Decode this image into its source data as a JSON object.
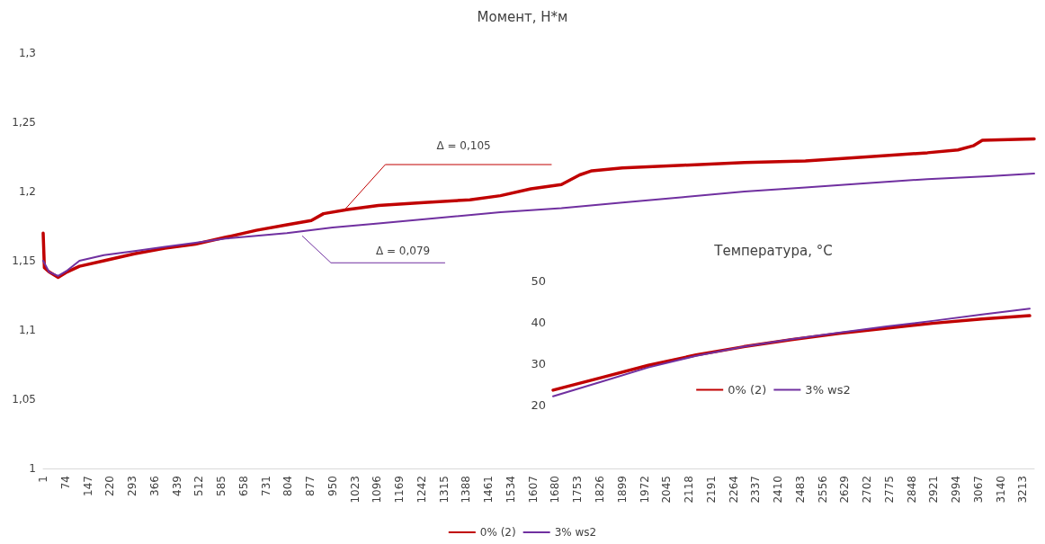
{
  "chart_data": [
    {
      "type": "line",
      "title": "Момент, Н*м",
      "xlim": [
        1,
        3250
      ],
      "xticks": [
        1,
        74,
        147,
        220,
        293,
        366,
        439,
        512,
        585,
        658,
        731,
        804,
        877,
        950,
        1023,
        1096,
        1169,
        1242,
        1315,
        1388,
        1461,
        1534,
        1607,
        1680,
        1753,
        1826,
        1899,
        1972,
        2045,
        2118,
        2191,
        2264,
        2337,
        2410,
        2483,
        2556,
        2629,
        2702,
        2775,
        2848,
        2921,
        2994,
        3067,
        3140,
        3213
      ],
      "ylim": [
        1,
        1.3
      ],
      "yticks": [
        1,
        {
          "value": 1.05,
          "label": "1,05"
        },
        {
          "value": 1.1,
          "label": "1,1"
        },
        {
          "value": 1.15,
          "label": "1,15"
        },
        {
          "value": 1.2,
          "label": "1,2"
        },
        {
          "value": 1.25,
          "label": "1,25"
        },
        {
          "value": 1.3,
          "label": "1,3"
        }
      ],
      "grid": false,
      "legend": "bottom",
      "marker": "none",
      "line_style": "solid",
      "annotations": [
        {
          "text": "Δ = 0,105",
          "x": 990,
          "y": 1.187
        },
        {
          "text": "Δ = 0,079",
          "x": 850,
          "y": 1.168
        }
      ],
      "series": [
        {
          "name": "0% (2)",
          "color": "#c00000",
          "x": [
            1,
            5,
            20,
            50,
            80,
            120,
            200,
            300,
            400,
            500,
            600,
            700,
            800,
            880,
            920,
            1000,
            1100,
            1250,
            1400,
            1500,
            1600,
            1700,
            1760,
            1800,
            1900,
            2100,
            2300,
            2500,
            2700,
            2900,
            3000,
            3050,
            3080,
            3250
          ],
          "values": [
            1.17,
            1.145,
            1.142,
            1.138,
            1.142,
            1.146,
            1.15,
            1.155,
            1.159,
            1.162,
            1.167,
            1.172,
            1.176,
            1.179,
            1.184,
            1.187,
            1.19,
            1.192,
            1.194,
            1.197,
            1.202,
            1.205,
            1.212,
            1.215,
            1.217,
            1.219,
            1.221,
            1.222,
            1.225,
            1.228,
            1.23,
            1.233,
            1.237,
            1.238
          ]
        },
        {
          "name": "3% ws2",
          "color": "#7030a0",
          "x": [
            1,
            20,
            50,
            80,
            120,
            200,
            300,
            400,
            500,
            600,
            700,
            800,
            950,
            1100,
            1300,
            1500,
            1700,
            1900,
            2100,
            2300,
            2500,
            2700,
            2900,
            3100,
            3250
          ],
          "values": [
            1.15,
            1.142,
            1.139,
            1.143,
            1.15,
            1.154,
            1.157,
            1.16,
            1.163,
            1.166,
            1.168,
            1.17,
            1.174,
            1.177,
            1.181,
            1.185,
            1.188,
            1.192,
            1.196,
            1.2,
            1.203,
            1.206,
            1.209,
            1.211,
            1.213
          ]
        }
      ]
    },
    {
      "type": "line",
      "title": "Температура, °C",
      "categories": [
        null,
        null,
        null,
        null,
        null,
        null,
        null,
        null,
        null,
        null,
        null
      ],
      "ylim": [
        20,
        50
      ],
      "yticks": [
        20,
        30,
        40,
        50
      ],
      "tick_labels": "y",
      "grid": false,
      "legend": "bottom",
      "marker": "none",
      "line_style": "solid",
      "series": [
        {
          "name": "0% (2)",
          "color": "#c00000",
          "values": [
            23.5,
            26.5,
            29.5,
            32,
            34,
            35.7,
            37.2,
            38.5,
            39.7,
            40.7,
            41.5
          ]
        },
        {
          "name": "3% ws2",
          "color": "#7030a0",
          "values": [
            22,
            25.5,
            29,
            31.8,
            34,
            35.8,
            37.4,
            38.9,
            40.3,
            41.8,
            43.2
          ]
        }
      ]
    }
  ]
}
